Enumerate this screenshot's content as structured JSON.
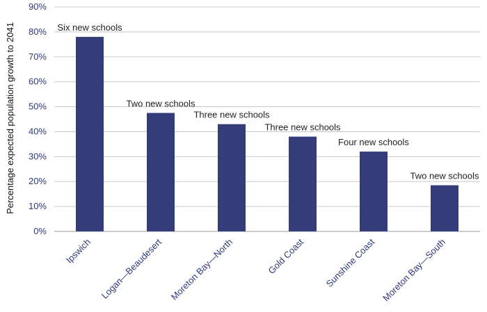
{
  "chart_data": {
    "type": "bar",
    "title": "",
    "xlabel": "",
    "ylabel": "Percentage expected population growth to 2041",
    "categories": [
      "Ipswich",
      "Logan—Beaudesert",
      "Moreton Bay—North",
      "Gold Coast",
      "Sunshine Coast",
      "Moreton Bay—South"
    ],
    "values": [
      78,
      47.5,
      43,
      38,
      32,
      18.5
    ],
    "annotations": [
      "Six new schools",
      "Two new schools",
      "Three new schools",
      "Three new schools",
      "Four new schools",
      "Two new schools"
    ],
    "ylim": [
      0,
      90
    ],
    "yticks": [
      "0%",
      "10%",
      "20%",
      "30%",
      "40%",
      "50%",
      "60%",
      "70%",
      "80%",
      "90%"
    ],
    "grid": true,
    "bar_color": "#343d7a",
    "grid_color": "#c8c8c8",
    "axis_color": "#2e3a7a"
  }
}
